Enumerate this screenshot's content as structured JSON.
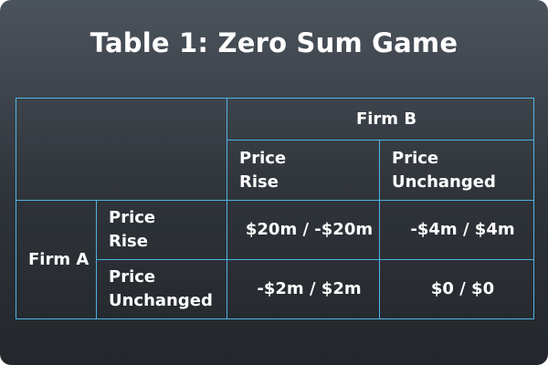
{
  "title": "Table 1: Zero Sum Game",
  "colors": {
    "background_top": "#4b535c",
    "background_bottom": "#23272c",
    "grid_line": "#4fb3e4",
    "firm_b_label": "#33b5ee",
    "text": "#ffffff"
  },
  "table": {
    "column_player": "Firm B",
    "row_player": "Firm A",
    "column_strategies": [
      [
        "Price",
        "Rise"
      ],
      [
        "Price",
        "Unchanged"
      ]
    ],
    "row_strategies": [
      [
        "Price",
        "Rise"
      ],
      [
        "Price",
        "Unchanged"
      ]
    ],
    "payoffs": [
      [
        "$20m / -$20m",
        "-$4m / $4m"
      ],
      [
        "-$2m / $2m",
        "$0 / $0"
      ]
    ]
  }
}
